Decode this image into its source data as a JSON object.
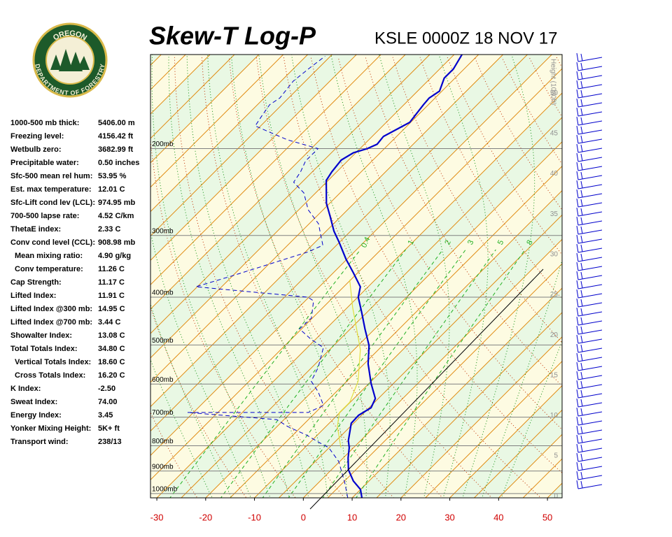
{
  "logo": {
    "top": "OREGON",
    "bottom": "DEPARTMENT OF FORESTRY"
  },
  "indices": [
    {
      "label": "1000-500 mb thick:",
      "value": "5406.00 m"
    },
    {
      "label": "Freezing level:",
      "value": "4156.42 ft"
    },
    {
      "label": "Wetbulb zero:",
      "value": "3682.99 ft"
    },
    {
      "label": "Precipitable water:",
      "value": "0.50 inches"
    },
    {
      "label": "Sfc-500 mean rel hum:",
      "value": "53.95 %"
    },
    {
      "label": "Est. max temperature:",
      "value": "12.01 C"
    },
    {
      "label": "Sfc-Lift cond lev (LCL):",
      "value": "974.95 mb"
    },
    {
      "label": "700-500 lapse rate:",
      "value": "4.52 C/km"
    },
    {
      "label": "ThetaE index:",
      "value": "2.33 C"
    },
    {
      "label": "Conv cond level (CCL):",
      "value": "908.98 mb"
    },
    {
      "label": "Mean mixing ratio:",
      "value": "4.90 g/kg"
    },
    {
      "label": "Conv temperature:",
      "value": "11.26 C"
    },
    {
      "label": "Cap Strength:",
      "value": "11.17 C"
    },
    {
      "label": "Lifted Index:",
      "value": "11.91 C"
    },
    {
      "label": "Lifted Index @300 mb:",
      "value": "14.95 C"
    },
    {
      "label": "Lifted Index @700 mb:",
      "value": "3.44 C"
    },
    {
      "label": "Showalter Index:",
      "value": "13.08 C"
    },
    {
      "label": "Total Totals Index:",
      "value": "34.80 C"
    },
    {
      "label": "Vertical Totals Index:",
      "value": "18.60 C"
    },
    {
      "label": "Cross Totals Index:",
      "value": "16.20 C"
    },
    {
      "label": "K Index:",
      "value": "-2.50"
    },
    {
      "label": "Sweat Index:",
      "value": "74.00"
    },
    {
      "label": "Energy Index:",
      "value": "3.45"
    },
    {
      "label": "Yonker Mixing Height:",
      "value": "5K+ ft"
    },
    {
      "label": "Transport wind:",
      "value": "238/13"
    }
  ],
  "chart_data": {
    "type": "skewt",
    "title": "Skew-T Log-P",
    "subtitle": "KSLE 0000Z 18 NOV 17",
    "y2_label": "Height (1000ft)",
    "xlim": [
      -31.3,
      53.0
    ],
    "xticks": [
      -30,
      -20,
      -10,
      0,
      10,
      20,
      30,
      40,
      50
    ],
    "ylim": [
      1020,
      129
    ],
    "log_y": true,
    "yticks": [
      {
        "value": 200,
        "label": "200mb"
      },
      {
        "value": 300,
        "label": "300mb"
      },
      {
        "value": 400,
        "label": "400mb"
      },
      {
        "value": 500,
        "label": "500mb"
      },
      {
        "value": 600,
        "label": "600mb"
      },
      {
        "value": 700,
        "label": "700mb"
      },
      {
        "value": 800,
        "label": "800mb"
      },
      {
        "value": 900,
        "label": "900mb"
      },
      {
        "value": 1000,
        "label": "1000mb"
      }
    ],
    "y2lim": [
      -0.2,
      54.8
    ],
    "y2ticks": [
      0,
      5,
      10,
      15,
      20,
      25,
      30,
      35,
      40,
      45,
      50
    ],
    "mixing_ratio_labels": [
      "0.4",
      "1",
      "2",
      "3",
      "5",
      "8"
    ],
    "series": [
      {
        "color": "#0000cc",
        "x": [
          12.0,
          10.0,
          6.8,
          3.5,
          1.0,
          -0.9,
          -2.5,
          -5.5,
          -5.6,
          -4.6,
          -5.6,
          -9.6,
          -14.2,
          -17.8,
          -22.0,
          -26.0,
          -29.9,
          -31.6,
          -35.9,
          -40.2,
          -45.2,
          -48.4,
          -52.1,
          -55.7,
          -60.4,
          -61.0,
          -61.5,
          -60.5,
          -58.5,
          -57.4,
          -57.7,
          -55.2,
          -56.0,
          -56.2,
          -55.5,
          -57.2,
          -57.2,
          -58.4
        ],
        "y": [
          1020,
          981,
          943,
          895,
          847,
          807,
          781,
          720,
          694,
          670,
          642,
          598,
          546,
          501,
          464,
          430,
          400,
          381,
          357,
          335,
          309,
          294,
          275,
          258,
          232,
          223,
          211,
          204,
          200,
          196,
          189,
          177,
          163,
          158,
          153,
          144,
          138,
          129
        ]
      },
      {
        "color": "#0000cc",
        "dashed": true,
        "x": [
          9.1,
          5.3,
          -0.2,
          -5.1,
          -8.4,
          -12.2,
          -17.7,
          -21.5,
          -41.2,
          -16.5,
          -14.8,
          -18.7,
          -22.3,
          -23.7,
          -26.7,
          -30.9,
          -35.4,
          -35.2,
          -38.3,
          -40.2,
          -65.3,
          -60.3,
          -49.5,
          -47.8,
          -53.1,
          -58.1,
          -62.4,
          -66.7,
          -67.4,
          -68.6,
          -68.6,
          -76.7,
          -86.1,
          -86.8,
          -87.5,
          -86.8,
          -87.5,
          -86.8,
          -86.1
        ],
        "y": [
          1020,
          949,
          861,
          807,
          786,
          761,
          732,
          708,
          685,
          685,
          663,
          622,
          592,
          555,
          506,
          487,
          464,
          441,
          407,
          400,
          381,
          363,
          324,
          314,
          284,
          266,
          246,
          234,
          223,
          212,
          200,
          192,
          180,
          172,
          163,
          158,
          146,
          137,
          130
        ]
      },
      {
        "color": "#e0e040",
        "x": [
          -2.6,
          -7.6,
          -10.1,
          -10.1,
          -12.7,
          -18.7,
          -23.7,
          -28.9,
          -35.2
        ],
        "y": [
          807,
          732,
          685,
          653,
          592,
          511,
          464,
          420,
          369
        ]
      }
    ]
  }
}
